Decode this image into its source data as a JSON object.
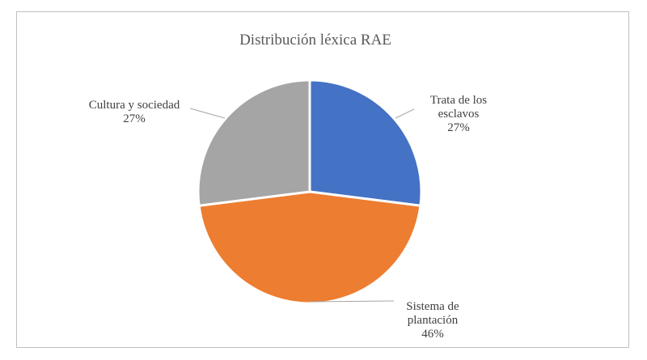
{
  "chart_data": {
    "type": "pie",
    "title": "Distribución léxica RAE",
    "categories": [
      "Trata de los esclavos",
      "Sistema de plantación",
      "Cultura y sociedad"
    ],
    "values": [
      27,
      46,
      27
    ],
    "unit": "%",
    "labels": [
      [
        "Trata de los",
        "esclavos",
        "27%"
      ],
      [
        "Sistema de",
        "plantación",
        "46%"
      ],
      [
        "Cultura y sociedad",
        "27%"
      ]
    ],
    "colors": [
      "#4472c4",
      "#ed7d31",
      "#a5a5a5"
    ],
    "legend": "none"
  }
}
